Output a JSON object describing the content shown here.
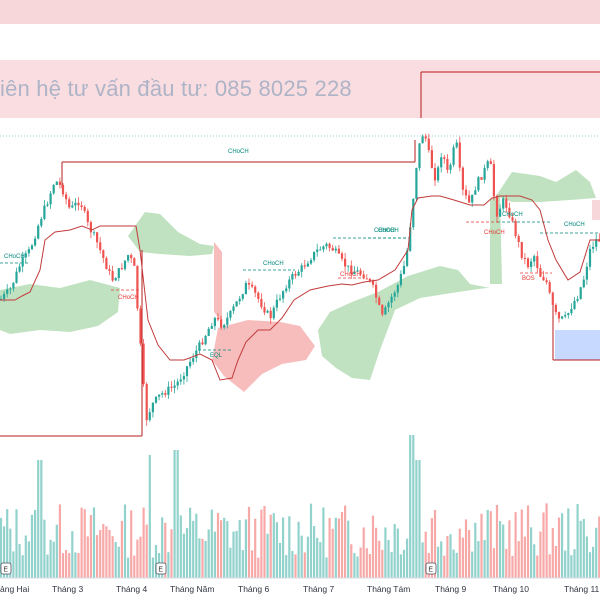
{
  "watermark": "iên hệ tư vấn đầu tư:  085 8025 228",
  "colors": {
    "up": "#26a69a",
    "down": "#ef5350",
    "cloud_bull": "#a5d6a7",
    "cloud_bear": "#f4a0a0",
    "baseline": "#c23b3b",
    "structure": "#b71c1c",
    "annotation_bull": "#00897b",
    "annotation_bear": "#e53935",
    "zone_top": "#f8d7da",
    "zone_blue": "#c7d9ff"
  },
  "annotations": [
    {
      "text": "CHoCH",
      "kind": "bull"
    },
    {
      "text": "CHoCH",
      "kind": "bull"
    },
    {
      "text": "CHoCH",
      "kind": "bull"
    },
    {
      "text": "CHoCH",
      "kind": "bull"
    },
    {
      "text": "CHoCH",
      "kind": "bull"
    },
    {
      "text": "CHoCH",
      "kind": "bull"
    },
    {
      "text": "CHoCH",
      "kind": "bull"
    },
    {
      "text": "CHoCH",
      "kind": "bear"
    },
    {
      "text": "CHoCH",
      "kind": "bear"
    },
    {
      "text": "CHoCH",
      "kind": "bear"
    },
    {
      "text": "EQL",
      "kind": "bull"
    },
    {
      "text": "BOS",
      "kind": "bear"
    }
  ],
  "x_axis": {
    "labels": [
      "ảng Hai",
      "Tháng 3",
      "Tháng 4",
      "Tháng Năm",
      "Tháng 6",
      "Tháng 7",
      "Tháng Tám",
      "Tháng 9",
      "Tháng 10",
      "Tháng 11"
    ]
  },
  "event_badges": [
    "E",
    "E",
    "E"
  ],
  "chart_data": {
    "type": "candlestick",
    "x": [
      "Tháng Hai",
      "Tháng 3",
      "Tháng 4",
      "Tháng Năm",
      "Tháng 6",
      "Tháng 7",
      "Tháng Tám",
      "Tháng 9",
      "Tháng 10",
      "Tháng 11"
    ],
    "series": [
      {
        "values": [
          40,
          52,
          44,
          30,
          40,
          47,
          52,
          58,
          47,
          44
        ]
      }
    ],
    "ylim": [
      18,
      68
    ],
    "grid": false,
    "legend": "none"
  }
}
